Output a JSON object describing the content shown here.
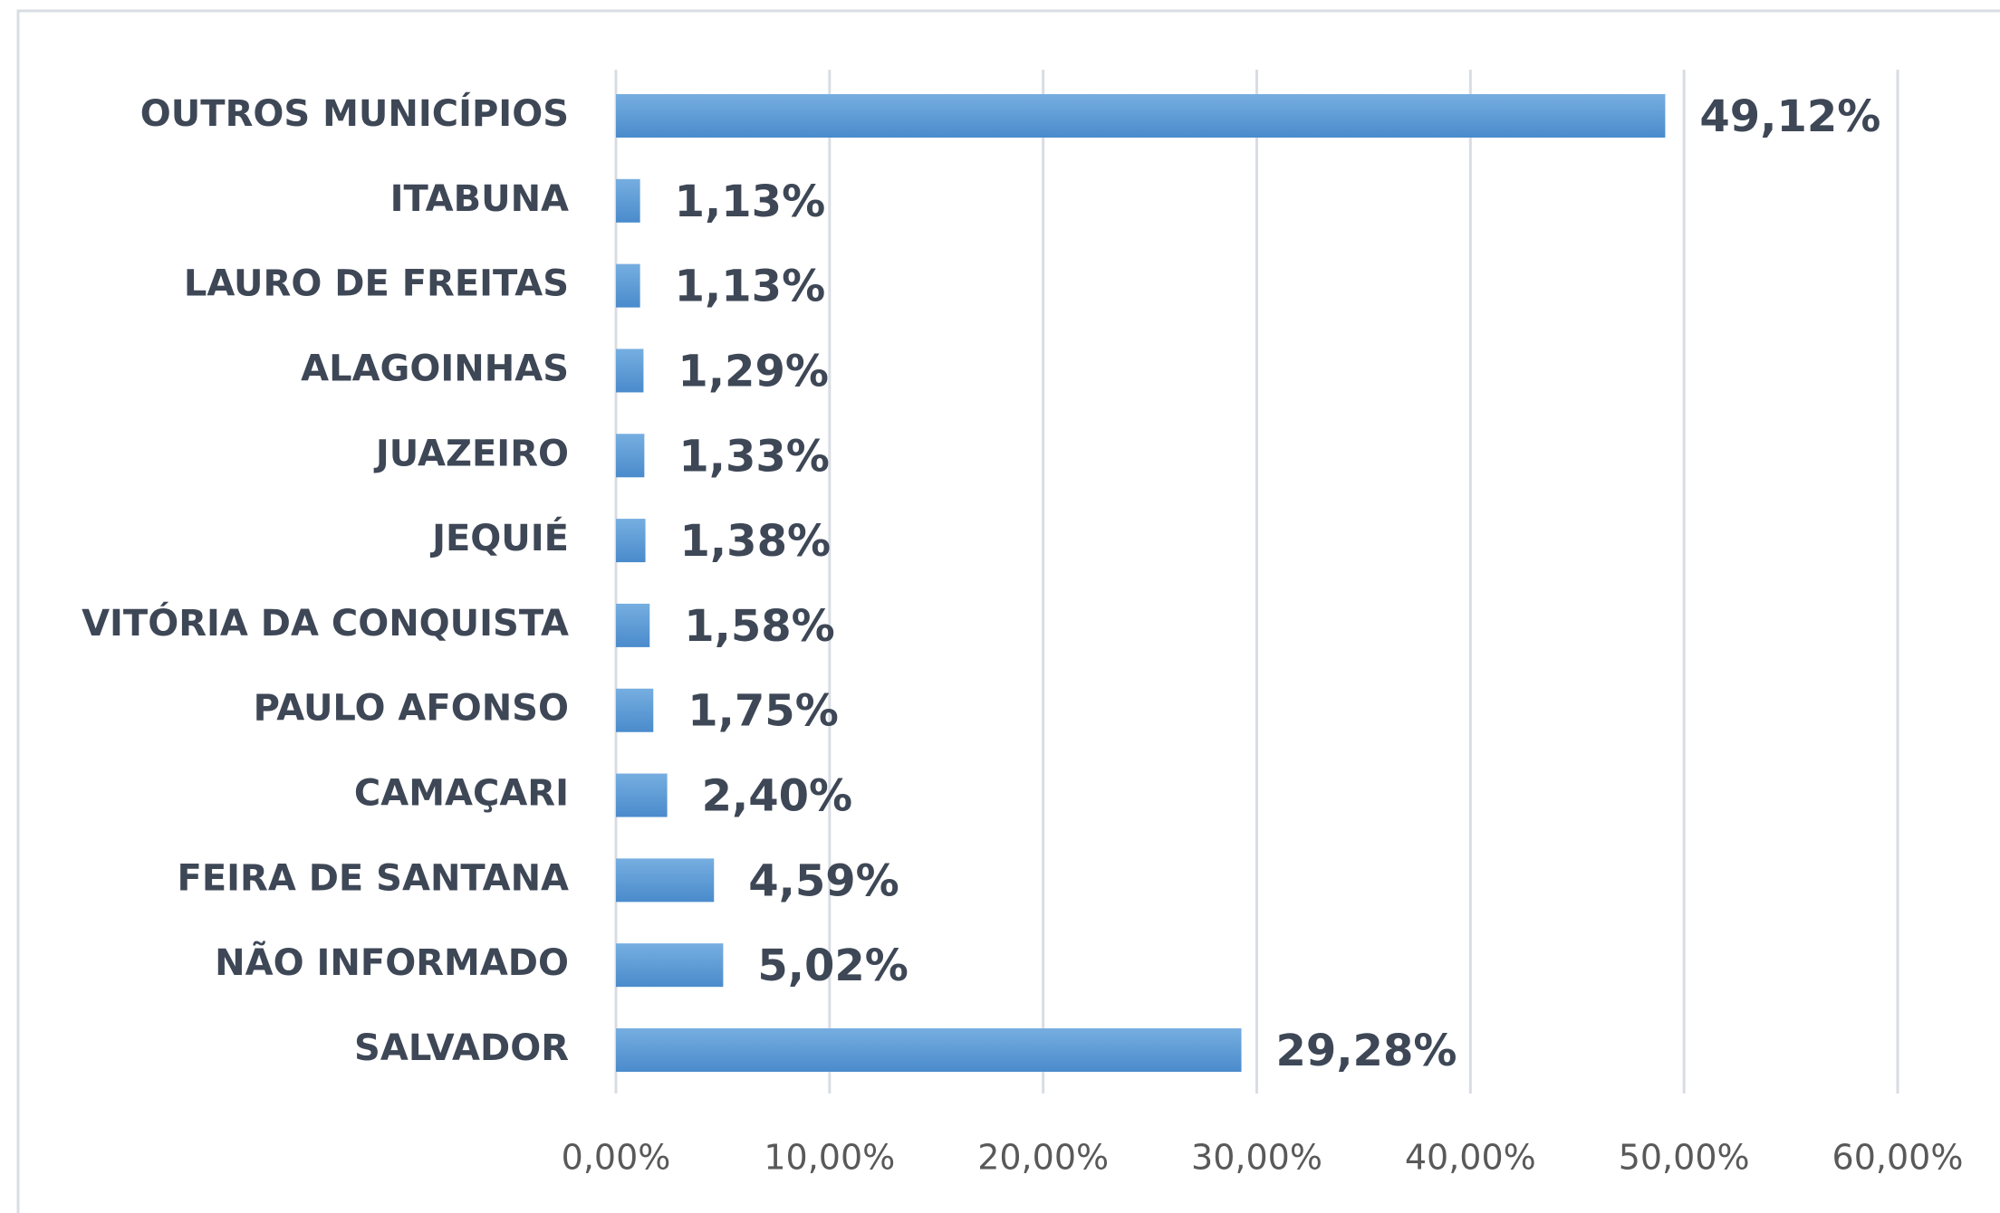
{
  "chart_data": {
    "type": "hbar",
    "categories": [
      "OUTROS MUNICÍPIOS",
      "ITABUNA",
      "LAURO DE FREITAS",
      "ALAGOINHAS",
      "JUAZEIRO",
      "JEQUIÉ",
      "VITÓRIA DA CONQUISTA",
      "PAULO AFONSO",
      "CAMAÇARI",
      "FEIRA DE SANTANA",
      "NÃO INFORMADO",
      "SALVADOR"
    ],
    "values": [
      49.12,
      1.13,
      1.13,
      1.29,
      1.33,
      1.38,
      1.58,
      1.75,
      2.4,
      4.59,
      5.02,
      29.28
    ],
    "value_labels": [
      "49,12%",
      "1,13%",
      "1,13%",
      "1,29%",
      "1,33%",
      "1,38%",
      "1,58%",
      "1,75%",
      "2,40%",
      "4,59%",
      "5,02%",
      "29,28%"
    ],
    "color": "#5b9bd5",
    "xlim": [
      0,
      60
    ],
    "xticks": [
      {
        "value": 0,
        "label": "0,00%"
      },
      {
        "value": 10,
        "label": "10,00%"
      },
      {
        "value": 20,
        "label": "20,00%"
      },
      {
        "value": 30,
        "label": "30,00%"
      },
      {
        "value": 40,
        "label": "40,00%"
      },
      {
        "value": 50,
        "label": "50,00%"
      },
      {
        "value": 60,
        "label": "60,00%"
      }
    ],
    "grid": true
  }
}
